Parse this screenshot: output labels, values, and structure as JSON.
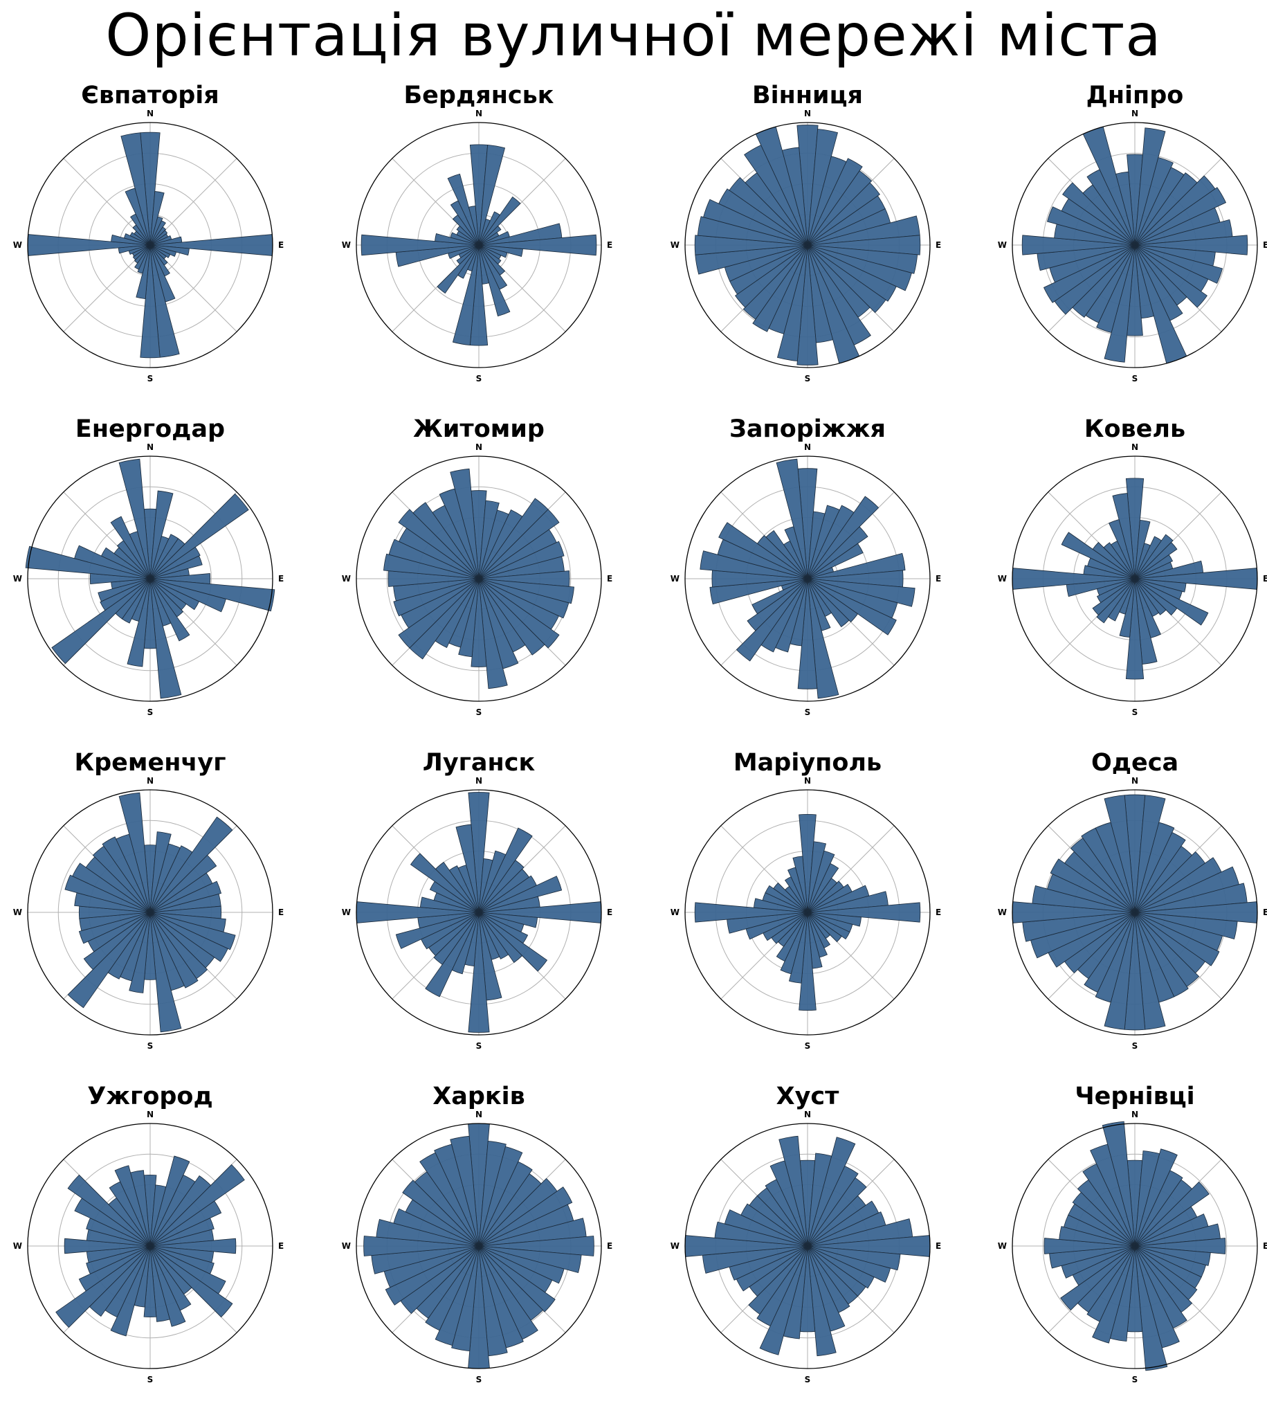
{
  "title": "Орієнтація вуличної мережі міста",
  "colors": {
    "bar_fill": "#3b6591",
    "bar_edge": "#1b2a3a",
    "grid": "#b0b0b0",
    "frame": "#000000"
  },
  "compass": {
    "n": "N",
    "e": "E",
    "s": "S",
    "w": "W"
  },
  "chart_data": [
    {
      "type": "polar-bar",
      "title": "Євпаторія",
      "r_max": 1.0,
      "bins": 36,
      "r_grid": [
        0.25,
        0.5,
        0.75
      ],
      "values": [
        0.92,
        0.44,
        0.24,
        0.22,
        0.18,
        0.17,
        0.16,
        0.18,
        0.26,
        1.0,
        0.32,
        0.22,
        0.18,
        0.16,
        0.2,
        0.28,
        0.48,
        0.92,
        0.92,
        0.44,
        0.24,
        0.22,
        0.18,
        0.17,
        0.16,
        0.18,
        0.26,
        1.0,
        0.32,
        0.22,
        0.18,
        0.16,
        0.2,
        0.28,
        0.48,
        0.92
      ]
    },
    {
      "type": "polar-bar",
      "title": "Бердянськ",
      "r_max": 1.0,
      "bins": 36,
      "r_grid": [
        0.25,
        0.5,
        0.75
      ],
      "values": [
        0.82,
        0.82,
        0.22,
        0.3,
        0.48,
        0.22,
        0.18,
        0.26,
        0.68,
        0.96,
        0.36,
        0.24,
        0.2,
        0.22,
        0.3,
        0.4,
        0.6,
        0.32,
        0.82,
        0.82,
        0.22,
        0.3,
        0.48,
        0.22,
        0.18,
        0.26,
        0.68,
        0.96,
        0.36,
        0.24,
        0.2,
        0.22,
        0.3,
        0.4,
        0.6,
        0.32
      ]
    },
    {
      "type": "polar-bar",
      "title": "Вінниця",
      "r_max": 1.0,
      "bins": 36,
      "r_grid": [
        0.25,
        0.5,
        0.75
      ],
      "values": [
        0.98,
        0.95,
        0.75,
        0.78,
        0.74,
        0.72,
        0.7,
        0.7,
        0.92,
        0.92,
        0.9,
        0.88,
        0.8,
        0.78,
        0.72,
        0.9,
        1.0,
        0.8,
        0.98,
        0.95,
        0.75,
        0.78,
        0.74,
        0.72,
        0.7,
        0.7,
        0.92,
        0.92,
        0.9,
        0.88,
        0.8,
        0.78,
        0.72,
        0.9,
        1.0,
        0.8
      ]
    },
    {
      "type": "polar-bar",
      "title": "Дніпро",
      "r_max": 1.0,
      "bins": 36,
      "r_grid": [
        0.25,
        0.5,
        0.75
      ],
      "values": [
        0.74,
        0.96,
        0.74,
        0.7,
        0.72,
        0.8,
        0.82,
        0.72,
        0.8,
        0.92,
        0.66,
        0.74,
        0.66,
        0.72,
        0.6,
        0.68,
        1.0,
        0.6,
        0.74,
        0.96,
        0.74,
        0.7,
        0.72,
        0.8,
        0.82,
        0.72,
        0.8,
        0.92,
        0.66,
        0.74,
        0.66,
        0.72,
        0.6,
        0.68,
        1.0,
        0.6
      ]
    },
    {
      "type": "polar-bar",
      "title": "Енергодар",
      "r_max": 1.0,
      "bins": 36,
      "r_grid": [
        0.25,
        0.5,
        0.75
      ],
      "values": [
        0.57,
        0.72,
        0.36,
        0.4,
        0.4,
        0.98,
        0.45,
        0.44,
        0.32,
        0.49,
        1.02,
        0.64,
        0.44,
        0.36,
        0.38,
        0.56,
        0.4,
        0.98,
        0.57,
        0.72,
        0.36,
        0.4,
        0.4,
        0.98,
        0.45,
        0.44,
        0.32,
        0.49,
        1.02,
        0.64,
        0.44,
        0.36,
        0.38,
        0.56,
        0.4,
        0.98
      ]
    },
    {
      "type": "polar-bar",
      "title": "Житомир",
      "r_max": 1.0,
      "bins": 36,
      "r_grid": [
        0.25,
        0.5,
        0.75
      ],
      "values": [
        0.72,
        0.64,
        0.58,
        0.62,
        0.8,
        0.8,
        0.7,
        0.72,
        0.7,
        0.74,
        0.78,
        0.76,
        0.72,
        0.8,
        0.76,
        0.66,
        0.76,
        0.9,
        0.72,
        0.64,
        0.58,
        0.62,
        0.8,
        0.8,
        0.7,
        0.72,
        0.7,
        0.74,
        0.78,
        0.76,
        0.72,
        0.8,
        0.76,
        0.66,
        0.76,
        0.9
      ]
    },
    {
      "type": "polar-bar",
      "title": "Запоріжжя",
      "r_max": 1.0,
      "bins": 36,
      "r_grid": [
        0.25,
        0.5,
        0.75
      ],
      "values": [
        0.9,
        0.55,
        0.62,
        0.66,
        0.82,
        0.6,
        0.5,
        0.22,
        0.8,
        0.78,
        0.88,
        0.76,
        0.8,
        0.5,
        0.48,
        0.34,
        0.44,
        0.98,
        0.9,
        0.55,
        0.62,
        0.66,
        0.82,
        0.6,
        0.5,
        0.22,
        0.8,
        0.78,
        0.88,
        0.76,
        0.8,
        0.5,
        0.48,
        0.34,
        0.44,
        0.98
      ]
    },
    {
      "type": "polar-bar",
      "title": "Ковель",
      "r_max": 1.0,
      "bins": 36,
      "r_grid": [
        0.25,
        0.5,
        0.75
      ],
      "values": [
        0.82,
        0.48,
        0.3,
        0.38,
        0.44,
        0.42,
        0.34,
        0.32,
        0.56,
        1.0,
        0.42,
        0.4,
        0.66,
        0.42,
        0.36,
        0.34,
        0.5,
        0.7,
        0.82,
        0.48,
        0.3,
        0.38,
        0.44,
        0.42,
        0.34,
        0.32,
        0.56,
        1.0,
        0.42,
        0.4,
        0.66,
        0.42,
        0.36,
        0.34,
        0.5,
        0.7
      ]
    },
    {
      "type": "polar-bar",
      "title": "Кременчуг",
      "r_max": 1.0,
      "bins": 36,
      "r_grid": [
        0.25,
        0.5,
        0.75
      ],
      "values": [
        0.55,
        0.66,
        0.58,
        0.6,
        0.95,
        0.66,
        0.56,
        0.6,
        0.58,
        0.58,
        0.62,
        0.72,
        0.7,
        0.64,
        0.66,
        0.68,
        0.66,
        0.98,
        0.55,
        0.66,
        0.58,
        0.6,
        0.95,
        0.66,
        0.56,
        0.6,
        0.58,
        0.58,
        0.62,
        0.72,
        0.7,
        0.64,
        0.66,
        0.68,
        0.66,
        0.98
      ]
    },
    {
      "type": "polar-bar",
      "title": "Луганск",
      "r_max": 1.0,
      "bins": 36,
      "r_grid": [
        0.25,
        0.5,
        0.75
      ],
      "values": [
        0.98,
        0.44,
        0.52,
        0.76,
        0.52,
        0.5,
        0.52,
        0.7,
        0.5,
        1.0,
        0.48,
        0.38,
        0.44,
        0.68,
        0.5,
        0.42,
        0.4,
        0.72,
        0.98,
        0.44,
        0.52,
        0.76,
        0.52,
        0.5,
        0.52,
        0.7,
        0.5,
        1.0,
        0.48,
        0.38,
        0.44,
        0.68,
        0.5,
        0.42,
        0.4,
        0.72
      ]
    },
    {
      "type": "polar-bar",
      "title": "Маріуполь",
      "r_max": 1.0,
      "bins": 36,
      "r_grid": [
        0.25,
        0.5,
        0.75
      ],
      "values": [
        0.8,
        0.58,
        0.52,
        0.44,
        0.34,
        0.36,
        0.4,
        0.52,
        0.66,
        0.92,
        0.44,
        0.38,
        0.38,
        0.34,
        0.26,
        0.32,
        0.38,
        0.46,
        0.8,
        0.58,
        0.52,
        0.44,
        0.34,
        0.36,
        0.4,
        0.52,
        0.66,
        0.92,
        0.44,
        0.38,
        0.38,
        0.34,
        0.26,
        0.32,
        0.38,
        0.46
      ]
    },
    {
      "type": "polar-bar",
      "title": "Одеса",
      "r_max": 1.0,
      "bins": 36,
      "r_grid": [
        0.25,
        0.5,
        0.75
      ],
      "values": [
        0.96,
        0.96,
        0.76,
        0.72,
        0.66,
        0.7,
        0.78,
        0.88,
        0.92,
        1.0,
        0.84,
        0.74,
        0.76,
        0.7,
        0.74,
        0.76,
        0.76,
        0.96,
        0.96,
        0.96,
        0.76,
        0.72,
        0.66,
        0.7,
        0.78,
        0.88,
        0.92,
        1.0,
        0.84,
        0.74,
        0.76,
        0.7,
        0.74,
        0.76,
        0.76,
        0.96
      ]
    },
    {
      "type": "polar-bar",
      "title": "Ужгород",
      "r_max": 1.0,
      "bins": 36,
      "r_grid": [
        0.25,
        0.5,
        0.75
      ],
      "values": [
        0.58,
        0.5,
        0.76,
        0.64,
        0.7,
        0.94,
        0.64,
        0.54,
        0.52,
        0.7,
        0.52,
        0.54,
        0.68,
        0.82,
        0.48,
        0.58,
        0.68,
        0.62,
        0.58,
        0.5,
        0.76,
        0.64,
        0.7,
        0.94,
        0.64,
        0.54,
        0.52,
        0.7,
        0.52,
        0.54,
        0.68,
        0.82,
        0.48,
        0.58,
        0.68,
        0.62
      ]
    },
    {
      "type": "polar-bar",
      "title": "Харків",
      "r_max": 1.0,
      "bins": 36,
      "r_grid": [
        0.25,
        0.5,
        0.75
      ],
      "values": [
        1.0,
        0.86,
        0.84,
        0.76,
        0.72,
        0.78,
        0.84,
        0.8,
        0.88,
        0.94,
        0.84,
        0.72,
        0.66,
        0.76,
        0.74,
        0.84,
        0.86,
        0.9,
        1.0,
        0.86,
        0.84,
        0.76,
        0.72,
        0.78,
        0.84,
        0.8,
        0.88,
        0.94,
        0.84,
        0.72,
        0.66,
        0.76,
        0.74,
        0.84,
        0.86,
        0.9
      ]
    },
    {
      "type": "polar-bar",
      "title": "Хуст",
      "r_max": 1.0,
      "bins": 36,
      "r_grid": [
        0.25,
        0.5,
        0.75
      ],
      "values": [
        0.7,
        0.76,
        0.92,
        0.72,
        0.68,
        0.58,
        0.64,
        0.66,
        0.86,
        1.0,
        0.76,
        0.7,
        0.6,
        0.58,
        0.58,
        0.6,
        0.72,
        0.9,
        0.7,
        0.76,
        0.92,
        0.72,
        0.68,
        0.58,
        0.64,
        0.66,
        0.86,
        1.0,
        0.76,
        0.7,
        0.6,
        0.58,
        0.58,
        0.6,
        0.72,
        0.9
      ]
    },
    {
      "type": "polar-bar",
      "title": "Чернівці",
      "r_max": 1.0,
      "bins": 36,
      "r_grid": [
        0.25,
        0.5,
        0.75
      ],
      "values": [
        0.7,
        0.78,
        0.82,
        0.68,
        0.66,
        0.74,
        0.56,
        0.62,
        0.7,
        0.74,
        0.62,
        0.6,
        0.6,
        0.62,
        0.66,
        0.74,
        0.86,
        1.02,
        0.7,
        0.78,
        0.82,
        0.68,
        0.66,
        0.74,
        0.56,
        0.62,
        0.7,
        0.74,
        0.62,
        0.6,
        0.6,
        0.62,
        0.66,
        0.74,
        0.86,
        1.02
      ]
    }
  ]
}
